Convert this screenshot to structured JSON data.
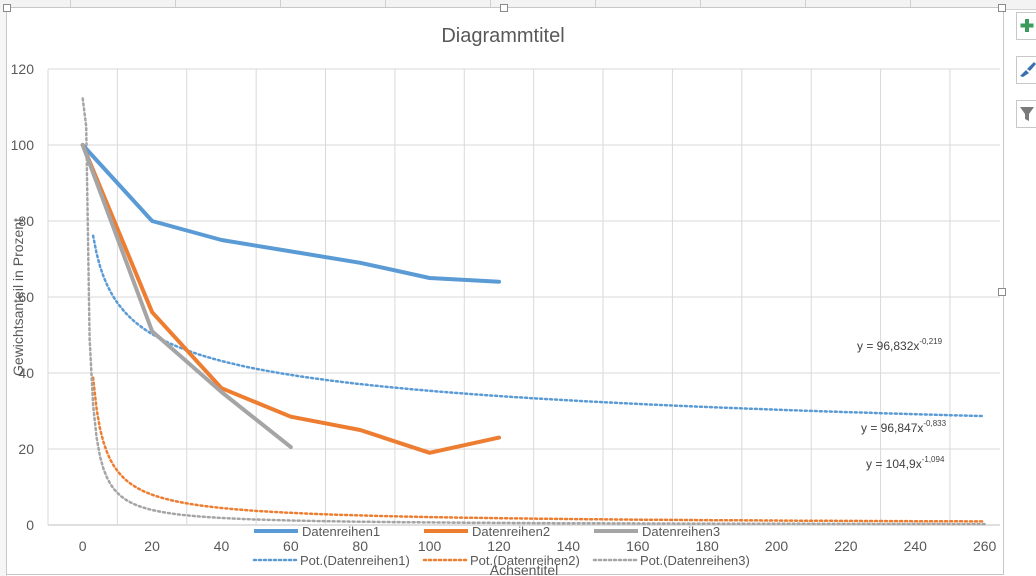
{
  "chart_data": {
    "type": "line",
    "title": "Diagrammtitel",
    "xlabel": "Achsentitel",
    "ylabel": "Gewichtsanteil in Prozent",
    "xlim": [
      -10,
      265
    ],
    "ylim": [
      0,
      120
    ],
    "x_ticks": [
      0,
      20,
      40,
      60,
      80,
      100,
      120,
      140,
      160,
      180,
      200,
      220,
      240,
      260
    ],
    "y_ticks": [
      0,
      20,
      40,
      60,
      80,
      100,
      120
    ],
    "grid": true,
    "legend_position": "bottom",
    "series": [
      {
        "name": "Datenreihen1",
        "color": "#5b9bd5",
        "x": [
          0,
          20,
          40,
          60,
          80,
          100,
          120
        ],
        "y": [
          100,
          80,
          75,
          72,
          69,
          65,
          64
        ]
      },
      {
        "name": "Datenreihen2",
        "color": "#ed7d31",
        "x": [
          0,
          20,
          40,
          60,
          80,
          100,
          120
        ],
        "y": [
          100,
          56,
          36,
          28.5,
          25,
          19,
          23
        ]
      },
      {
        "name": "Datenreihen3",
        "color": "#a5a5a5",
        "x": [
          0,
          20,
          40,
          60
        ],
        "y": [
          100,
          51,
          35,
          20.5
        ]
      }
    ],
    "trendlines": [
      {
        "name": "Pot.(Datenreihen1)",
        "color": "#5b9bd5",
        "a": 96.832,
        "b": -0.219,
        "equation_base": "y = 96,832x",
        "equation_exp": "-0,219"
      },
      {
        "name": "Pot.(Datenreihen2)",
        "color": "#ed7d31",
        "a": 96.847,
        "b": -0.833,
        "equation_base": "y = 96,847x",
        "equation_exp": "-0,833"
      },
      {
        "name": "Pot.(Datenreihen3)",
        "color": "#a5a5a5",
        "a": 104.9,
        "b": -1.094,
        "equation_base": "y = 104,9x",
        "equation_exp": "-1,094"
      }
    ]
  },
  "ui": {
    "side_buttons": [
      {
        "icon": "plus-icon",
        "color": "#3a9b5a"
      },
      {
        "icon": "brush-icon",
        "color": "#3a6fb0"
      },
      {
        "icon": "filter-icon",
        "color": "#7a7a7a"
      }
    ]
  }
}
